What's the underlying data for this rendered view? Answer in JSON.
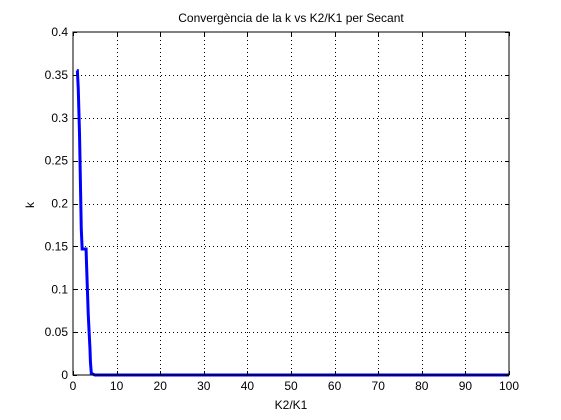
{
  "chart_data": {
    "type": "line",
    "title": "Convergència de la k vs K2/K1 per Secant",
    "xlabel": "K2/K1",
    "ylabel": "k",
    "xlim": [
      0,
      100
    ],
    "ylim": [
      0,
      0.4
    ],
    "xticks": [
      0,
      10,
      20,
      30,
      40,
      50,
      60,
      70,
      80,
      90,
      100
    ],
    "yticks": [
      0,
      0.05,
      0.1,
      0.15,
      0.2,
      0.25,
      0.3,
      0.35,
      0.4
    ],
    "grid": true,
    "legend": "none",
    "series": [
      {
        "color": "#0000ff",
        "x": [
          0.9,
          1.0,
          1.2,
          1.5,
          1.9,
          2.1,
          2.3,
          2.5,
          3.0,
          3.1,
          3.3,
          3.5,
          3.7,
          3.9,
          4.0,
          4.2,
          5,
          100
        ],
        "y": [
          0.355,
          0.355,
          0.335,
          0.28,
          0.17,
          0.147,
          0.147,
          0.147,
          0.147,
          0.13,
          0.1,
          0.07,
          0.05,
          0.03,
          0.015,
          0.002,
          0,
          0
        ]
      }
    ]
  }
}
